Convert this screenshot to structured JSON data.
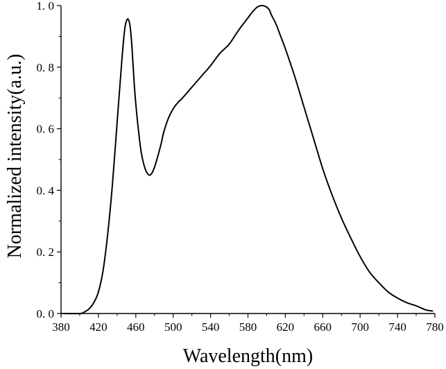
{
  "chart_data": {
    "type": "line",
    "title": "",
    "xlabel": "Wavelength(nm)",
    "ylabel": "Normalized intensity(a.u.)",
    "xlim": [
      380,
      780
    ],
    "ylim": [
      0,
      1.0
    ],
    "x_ticks": [
      380,
      420,
      460,
      500,
      540,
      580,
      620,
      660,
      700,
      740,
      780
    ],
    "y_ticks": [
      0.0,
      0.2,
      0.4,
      0.6,
      0.8,
      1.0
    ],
    "x_tick_labels": [
      "380",
      "420",
      "460",
      "500",
      "540",
      "580",
      "620",
      "660",
      "700",
      "740",
      "780"
    ],
    "y_tick_labels": [
      "0. 0",
      "0. 2",
      "0. 4",
      "0. 6",
      "0. 8",
      "1. 0"
    ],
    "grid": false,
    "legend": "none",
    "line_color": "#000000",
    "series": [
      {
        "x": [
          380,
          400,
          405,
          410,
          415,
          420,
          425,
          430,
          435,
          440,
          445,
          448,
          450,
          452,
          454,
          456,
          458,
          460,
          463,
          466,
          470,
          474,
          477,
          480,
          483,
          487,
          490,
          495,
          500,
          505,
          510,
          520,
          530,
          540,
          550,
          560,
          570,
          580,
          585,
          590,
          595,
          600,
          603,
          605,
          610,
          615,
          620,
          630,
          640,
          650,
          660,
          670,
          680,
          690,
          700,
          710,
          720,
          730,
          740,
          750,
          760,
          770,
          778
        ],
        "y": [
          0.0,
          0.0,
          0.005,
          0.015,
          0.035,
          0.07,
          0.14,
          0.26,
          0.42,
          0.62,
          0.82,
          0.92,
          0.95,
          0.955,
          0.93,
          0.86,
          0.76,
          0.68,
          0.59,
          0.52,
          0.47,
          0.45,
          0.455,
          0.475,
          0.505,
          0.55,
          0.59,
          0.635,
          0.665,
          0.685,
          0.7,
          0.735,
          0.77,
          0.805,
          0.845,
          0.875,
          0.92,
          0.96,
          0.98,
          0.995,
          1.0,
          0.995,
          0.985,
          0.97,
          0.94,
          0.9,
          0.86,
          0.77,
          0.67,
          0.57,
          0.47,
          0.385,
          0.31,
          0.245,
          0.185,
          0.135,
          0.1,
          0.07,
          0.05,
          0.035,
          0.025,
          0.012,
          0.008
        ]
      }
    ]
  }
}
